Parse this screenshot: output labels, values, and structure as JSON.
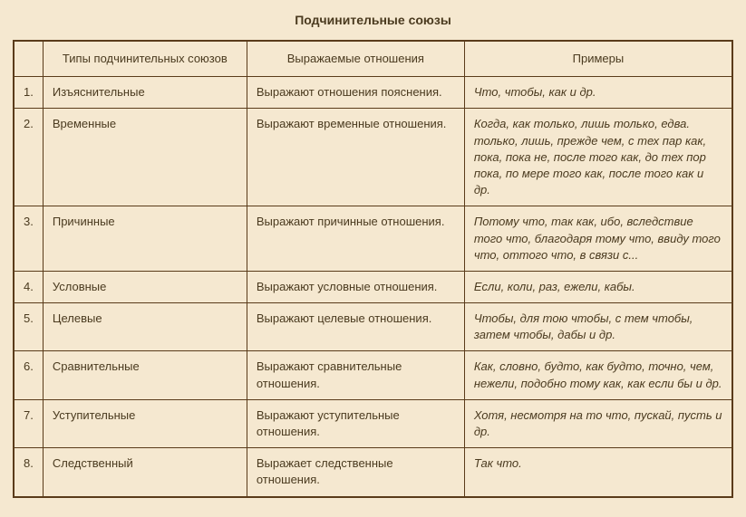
{
  "title": "Подчинительные союзы",
  "columns": [
    "",
    "Типы подчинительных союзов",
    "Выражаемые отношения",
    "Примеры"
  ],
  "rows": [
    {
      "n": "1.",
      "type": "Изъяснительные",
      "relation": "Выражают отношения пояснения.",
      "examples": "Что, чтобы, как и др."
    },
    {
      "n": "2.",
      "type": "Временные",
      "relation": "Выражают временные отношения.",
      "examples": "Когда, как только, лишь только, едва. только, лишь, прежде чем, с тех пар как, пока, пока не, после того как, до тех пор пока, по мере того как, после того как и др."
    },
    {
      "n": "3.",
      "type": "Причинные",
      "relation": "Выражают причинные отношения.",
      "examples": "Потому что, так как, ибо, вследствие того что, благодаря тому что, ввиду того что, оттого что, в связи с..."
    },
    {
      "n": "4.",
      "type": "Условные",
      "relation": "Выражают условные отношения.",
      "examples": "Если, коли, раз, ежели, кабы."
    },
    {
      "n": "5.",
      "type": "Целевые",
      "relation": "Выражают целевые отношения.",
      "examples": "Чтобы, для тою чтобы, с тем чтобы, затем чтобы, дабы и др."
    },
    {
      "n": "6.",
      "type": "Сравнительные",
      "relation": "Выражают сравнительные отношения.",
      "examples": "Как, словно, будто, как будто, точно, чем, нежели, подобно тому как, как если бы и др."
    },
    {
      "n": "7.",
      "type": "Уступительные",
      "relation": "Выражают уступительные отношения.",
      "examples": "Хотя, несмотря на то что, пускай, пусть и др."
    },
    {
      "n": "8.",
      "type": "Следственный",
      "relation": "Выражает следственные отношения.",
      "examples": "Так что."
    }
  ],
  "style": {
    "background_color": "#f5e8d0",
    "border_color": "#5a3b1a",
    "text_color": "#4a3a1f",
    "font_size": 13,
    "title_font_size": 14
  }
}
